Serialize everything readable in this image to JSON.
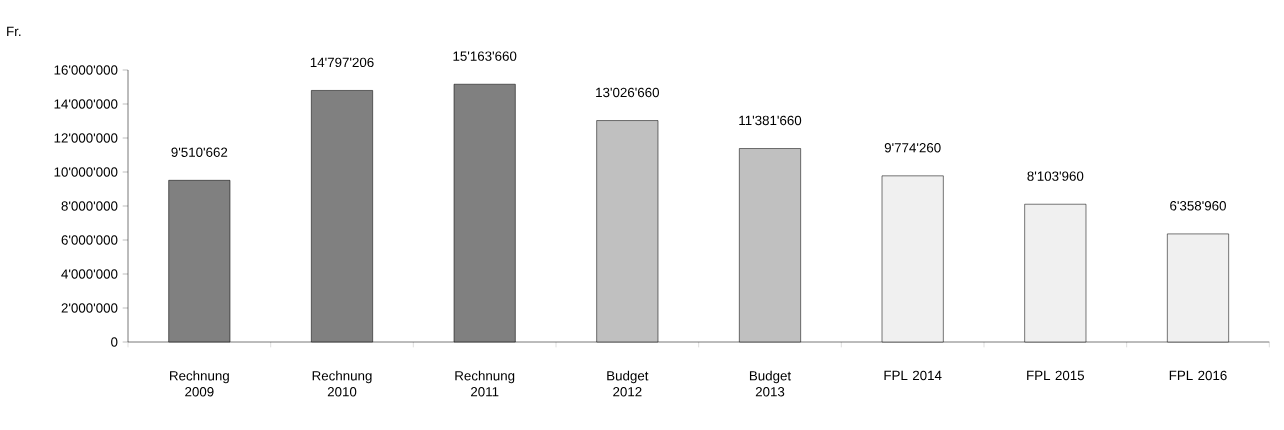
{
  "chart_data": {
    "type": "bar",
    "ylabel": "Fr.",
    "categories": [
      "Rechnung 2009",
      "Rechnung 2010",
      "Rechnung 2011",
      "Budget 2012",
      "Budget 2013",
      "FPL 2014",
      "FPL 2015",
      "FPL 2016"
    ],
    "values": [
      9510662,
      14797206,
      15163660,
      13026660,
      11381660,
      9774260,
      8103960,
      6358960
    ],
    "value_labels": [
      "9'510'662",
      "14'797'206",
      "15'163'660",
      "13'026'660",
      "11'381'660",
      "9'774'260",
      "8'103'960",
      "6'358'960"
    ],
    "colors": [
      "#808080",
      "#808080",
      "#808080",
      "#c0c0c0",
      "#c0c0c0",
      "#f0f0f0",
      "#f0f0f0",
      "#f0f0f0"
    ],
    "ylim": [
      0,
      16000000
    ],
    "yticks": [
      {
        "value": 0,
        "label": "0"
      },
      {
        "value": 2000000,
        "label": "2'000'000"
      },
      {
        "value": 4000000,
        "label": "4'000'000"
      },
      {
        "value": 6000000,
        "label": "6'000'000"
      },
      {
        "value": 8000000,
        "label": "8'000'000"
      },
      {
        "value": 10000000,
        "label": "10'000'000"
      },
      {
        "value": 12000000,
        "label": "12'000'000"
      },
      {
        "value": 14000000,
        "label": "14'000'000"
      },
      {
        "value": 16000000,
        "label": "16'000'000"
      }
    ]
  }
}
